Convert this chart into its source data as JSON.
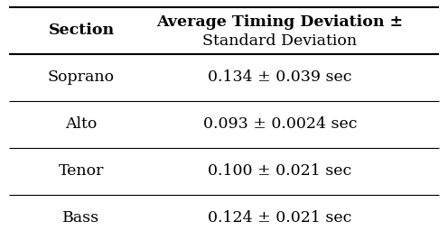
{
  "col1_header": "Section",
  "col2_header_line1": "Average Timing Deviation ±",
  "col2_header_line2": "Standard Deviation",
  "rows": [
    [
      "Soprano",
      "0.134 ± 0.039 sec"
    ],
    [
      "Alto",
      "0.093 ± 0.0024 sec"
    ],
    [
      "Tenor",
      "0.100 ± 0.021 sec"
    ],
    [
      "Bass",
      "0.124 ± 0.021 sec"
    ]
  ],
  "bg_color": "#ffffff",
  "text_color": "#000000",
  "header_fontsize": 12.5,
  "cell_fontsize": 12.5,
  "fig_width": 4.96,
  "fig_height": 2.76
}
